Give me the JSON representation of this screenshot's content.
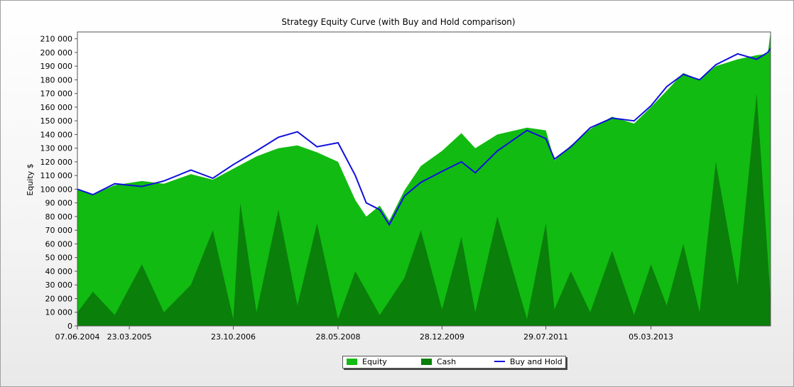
{
  "chart_data": {
    "type": "area",
    "title": "Strategy Equity Curve (with Buy and Hold comparison)",
    "xlabel": "",
    "ylabel": "Equity $",
    "ylim": [
      0,
      215000
    ],
    "yticks": [
      0,
      10000,
      20000,
      30000,
      40000,
      50000,
      60000,
      70000,
      80000,
      90000,
      100000,
      110000,
      120000,
      130000,
      140000,
      150000,
      160000,
      170000,
      180000,
      190000,
      200000,
      210000
    ],
    "ytick_labels": [
      "0",
      "10 000",
      "20 000",
      "30 000",
      "40 000",
      "50 000",
      "60 000",
      "70 000",
      "80 000",
      "90 000",
      "100 000",
      "110 000",
      "120 000",
      "130 000",
      "140 000",
      "150 000",
      "160 000",
      "170 000",
      "180 000",
      "190 000",
      "200 000",
      "210 000"
    ],
    "xlim": [
      "2004-06-07",
      "2014-12-31"
    ],
    "xticks": [
      "2004-06-07",
      "2005-03-23",
      "2006-10-23",
      "2008-05-28",
      "2009-12-28",
      "2011-07-29",
      "2013-03-05"
    ],
    "xtick_labels": [
      "07.06.2004",
      "23.03.2005",
      "23.10.2006",
      "28.05.2008",
      "28.12.2009",
      "29.07.2011",
      "05.03.2013"
    ],
    "grid": false,
    "legend_position": "bottom-center",
    "series": [
      {
        "name": "Equity",
        "kind": "area",
        "color": "#11bb11",
        "x": [
          "2004-06-07",
          "2004-09-01",
          "2005-01-01",
          "2005-06-01",
          "2005-10-01",
          "2006-03-01",
          "2006-07-01",
          "2006-10-23",
          "2007-03-01",
          "2007-07-01",
          "2007-10-15",
          "2008-02-01",
          "2008-05-28",
          "2008-09-01",
          "2008-11-01",
          "2009-01-15",
          "2009-03-09",
          "2009-06-01",
          "2009-09-01",
          "2009-12-28",
          "2010-04-15",
          "2010-07-01",
          "2010-11-01",
          "2011-04-15",
          "2011-07-29",
          "2011-09-15",
          "2011-12-15",
          "2012-04-01",
          "2012-08-01",
          "2012-12-01",
          "2013-03-05",
          "2013-06-01",
          "2013-09-01",
          "2013-12-01",
          "2014-03-01",
          "2014-07-01",
          "2014-10-15",
          "2014-12-15",
          "2014-12-31"
        ],
        "values": [
          100000,
          96000,
          103000,
          106000,
          104000,
          111000,
          107000,
          115000,
          124000,
          130000,
          132000,
          127000,
          120000,
          92000,
          80000,
          88000,
          77000,
          99000,
          117000,
          128000,
          141000,
          130000,
          140000,
          145000,
          143000,
          121000,
          132000,
          144000,
          153000,
          148000,
          160000,
          172000,
          185000,
          180000,
          190000,
          195000,
          198000,
          199000,
          215000
        ]
      },
      {
        "name": "Cash",
        "kind": "area",
        "color": "#0a7f0a",
        "x": [
          "2004-06-07",
          "2004-09-01",
          "2005-01-01",
          "2005-06-01",
          "2005-10-01",
          "2006-03-01",
          "2006-07-01",
          "2006-10-23",
          "2006-12-01",
          "2007-03-01",
          "2007-07-01",
          "2007-10-15",
          "2008-02-01",
          "2008-05-28",
          "2008-09-01",
          "2009-01-15",
          "2009-06-01",
          "2009-09-01",
          "2009-12-28",
          "2010-04-15",
          "2010-07-01",
          "2010-11-01",
          "2011-04-15",
          "2011-07-29",
          "2011-09-15",
          "2011-12-15",
          "2012-04-01",
          "2012-08-01",
          "2012-12-01",
          "2013-03-05",
          "2013-06-01",
          "2013-09-01",
          "2013-12-01",
          "2014-03-01",
          "2014-07-01",
          "2014-10-15",
          "2014-12-31"
        ],
        "values": [
          10000,
          25000,
          8000,
          45000,
          10000,
          30000,
          70000,
          5000,
          90000,
          10000,
          85000,
          15000,
          75000,
          5000,
          40000,
          8000,
          35000,
          70000,
          12000,
          65000,
          10000,
          80000,
          5000,
          75000,
          12000,
          40000,
          10000,
          55000,
          8000,
          45000,
          15000,
          60000,
          10000,
          120000,
          30000,
          170000,
          20000
        ]
      },
      {
        "name": "Buy and Hold",
        "kind": "line",
        "color": "#1010dd",
        "x": [
          "2004-06-07",
          "2004-09-01",
          "2005-01-01",
          "2005-06-01",
          "2005-10-01",
          "2006-03-01",
          "2006-07-01",
          "2006-10-23",
          "2007-03-01",
          "2007-07-01",
          "2007-10-15",
          "2008-02-01",
          "2008-05-28",
          "2008-09-01",
          "2008-11-01",
          "2009-01-15",
          "2009-03-09",
          "2009-06-01",
          "2009-09-01",
          "2009-12-28",
          "2010-04-15",
          "2010-07-01",
          "2010-11-01",
          "2011-04-15",
          "2011-07-29",
          "2011-09-15",
          "2011-12-15",
          "2012-04-01",
          "2012-08-01",
          "2012-12-01",
          "2013-03-05",
          "2013-06-01",
          "2013-09-01",
          "2013-12-01",
          "2014-03-01",
          "2014-07-01",
          "2014-10-15",
          "2014-12-15",
          "2014-12-31"
        ],
        "values": [
          100000,
          96000,
          104000,
          102000,
          106000,
          114000,
          108000,
          118000,
          128000,
          138000,
          142000,
          131000,
          134000,
          110000,
          90000,
          85000,
          74000,
          95000,
          105000,
          113000,
          120000,
          112000,
          128000,
          143000,
          137000,
          122000,
          131000,
          145000,
          152000,
          150000,
          161000,
          175000,
          184000,
          180000,
          191000,
          199000,
          195000,
          200000,
          203000
        ]
      }
    ]
  }
}
